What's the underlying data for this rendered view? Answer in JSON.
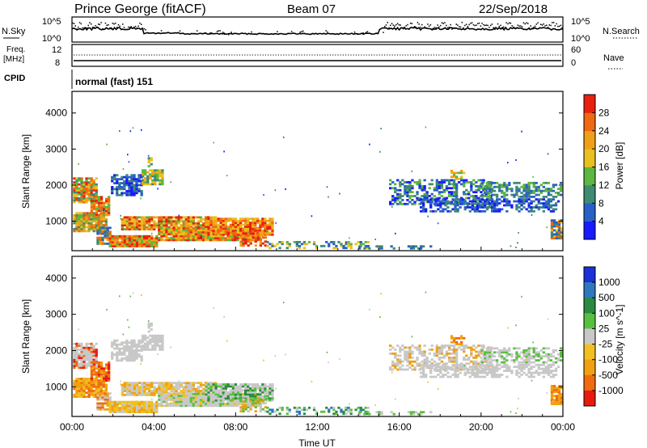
{
  "header": {
    "title": "Prince George (fitACF)",
    "beam": "Beam 07",
    "date": "22/Sep/2018"
  },
  "top_panels": {
    "nsky": {
      "label": "N.Sky",
      "tick_top": "10^5",
      "tick_bottom": "10^0",
      "right_label": "N.Search",
      "right_tick_top": "10^5",
      "right_tick_bottom": "10^0"
    },
    "freq": {
      "label_line1": "Freq.",
      "label_line2": "[MHz]",
      "tick_top": "12",
      "tick_bottom": "8",
      "right_label": "Nave",
      "right_tick_top": "60",
      "right_tick_bottom": "0"
    },
    "cpid": {
      "label": "CPID",
      "value": "normal (fast) 151"
    }
  },
  "chart_data": [
    {
      "type": "heatmap",
      "name": "power",
      "ylabel": "Slant Range [km]",
      "yticks": [
        1000,
        2000,
        3000,
        4000
      ],
      "ylim": [
        180,
        4600
      ],
      "colorbar_label": "Power [dB]",
      "colorbar_ticks": [
        "4",
        "8",
        "12",
        "16",
        "20",
        "24",
        "28"
      ],
      "colorbar_colors": [
        "#1a1aff",
        "#2860c8",
        "#3f8a72",
        "#5cb640",
        "#e8c020",
        "#f0a018",
        "#f06810",
        "#e82010"
      ],
      "colorbar_range": [
        0,
        32
      ]
    },
    {
      "type": "heatmap",
      "name": "velocity",
      "ylabel": "Slant Range [km]",
      "yticks": [
        1000,
        2000,
        3000,
        4000
      ],
      "ylim": [
        180,
        4600
      ],
      "colorbar_label": "Velocity [m s^-1]",
      "colorbar_ticks": [
        "1000",
        "500",
        "100",
        "25",
        "-25",
        "-100",
        "-500",
        "-1000"
      ],
      "colorbar_colors": [
        "#1a30d8",
        "#2e78c0",
        "#2c8a40",
        "#58c040",
        "#c8c8c8",
        "#f0c020",
        "#f0a010",
        "#f06a10",
        "#e81a10"
      ],
      "xlabel": "Time UT",
      "xticks": [
        "00:00",
        "04:00",
        "08:00",
        "12:00",
        "16:00",
        "20:00",
        "00:00"
      ]
    }
  ]
}
